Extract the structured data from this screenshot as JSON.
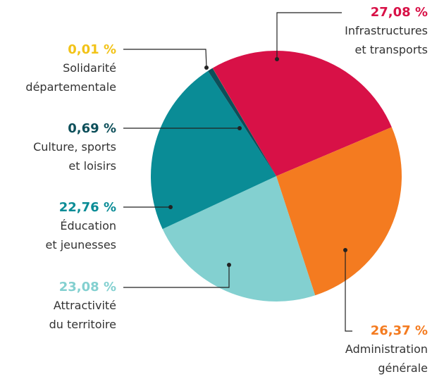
{
  "chart_data": {
    "type": "pie",
    "categories": [
      "Infrastructures\net transports",
      "Administration\ngénérale",
      "Attractivité\ndu territoire",
      "Éducation\net jeunesses",
      "Culture, sports\net loisirs",
      "Solidarité\ndépartementale"
    ],
    "values": [
      27.08,
      26.37,
      23.08,
      22.76,
      0.69,
      0.01
    ],
    "value_labels": [
      "27,08 %",
      "26,37 %",
      "23,08 %",
      "22,76 %",
      "0,69 %",
      "0,01 %"
    ],
    "colors": [
      "#d81147",
      "#f47b20",
      "#83d0d0",
      "#0a8c96",
      "#0d4f5a",
      "#f2c318"
    ]
  }
}
